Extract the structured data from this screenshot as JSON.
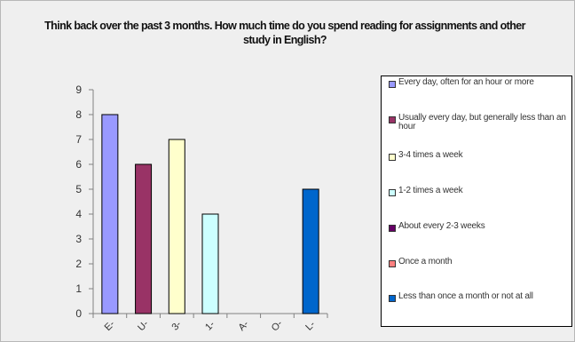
{
  "chart_data": {
    "type": "bar",
    "title": "Think back over the past 3 months. How much time do you spend reading for assignments and other study in English?",
    "categories": [
      "Every day, often for an hour or more",
      "Usually every day, but generally less than an hour",
      "3-4 times a week",
      "1-2 times a week",
      "About every 2-3 weeks",
      "Once a month",
      "Less than once a month or not at all"
    ],
    "tick_labels": [
      "E",
      "U",
      "3",
      "1",
      "A",
      "O",
      "L"
    ],
    "values": [
      8,
      6,
      7,
      4,
      0,
      0,
      5
    ],
    "colors": [
      "#9999ff",
      "#993366",
      "#ffffcc",
      "#ccffff",
      "#660066",
      "#ff8080",
      "#0066cc"
    ],
    "y_ticks": [
      0,
      1,
      2,
      3,
      4,
      5,
      6,
      7,
      8,
      9
    ],
    "ylim": [
      0,
      9
    ],
    "xlabel": "",
    "ylabel": "",
    "grid": false,
    "legend_position": "right"
  }
}
